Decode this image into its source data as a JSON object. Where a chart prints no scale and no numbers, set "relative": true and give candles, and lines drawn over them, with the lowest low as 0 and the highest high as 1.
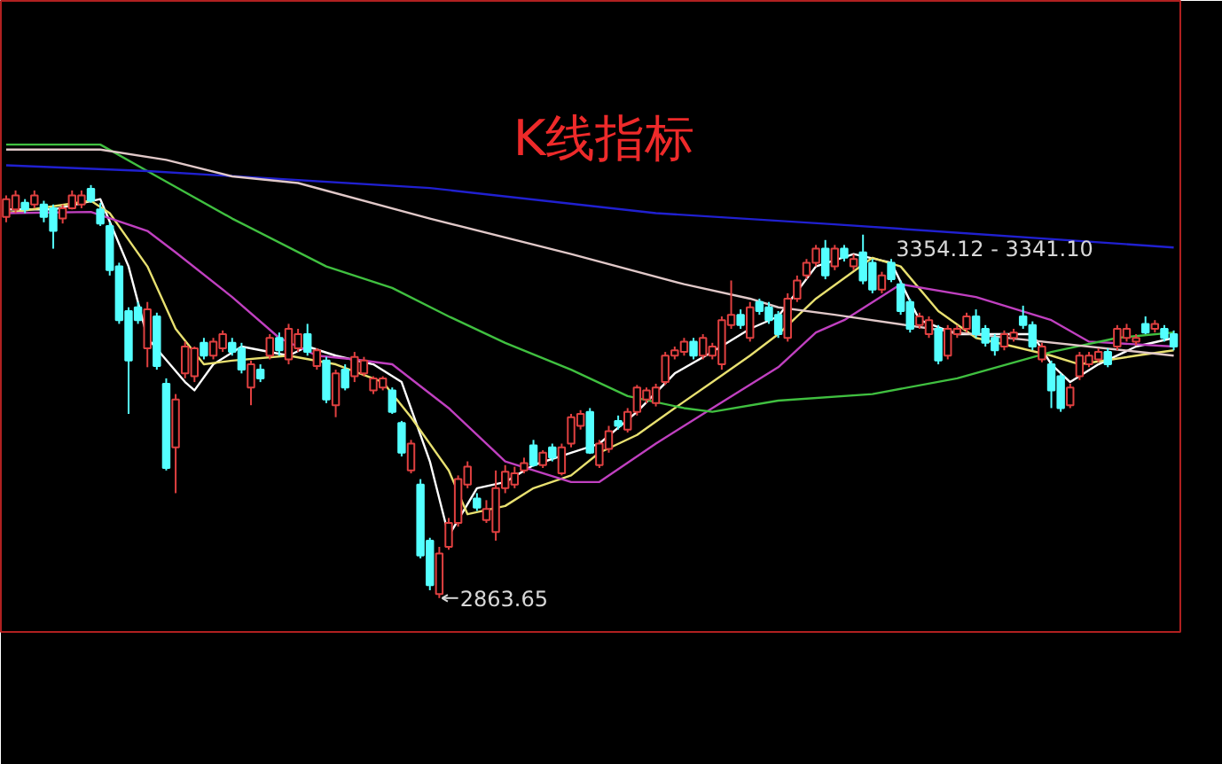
{
  "chart_data": {
    "type": "candlestick",
    "title": "K线指标",
    "relative": true,
    "categories": [
      null,
      null,
      null,
      null,
      null,
      null,
      null,
      null,
      null,
      null,
      null,
      null,
      null,
      null,
      null,
      null,
      null,
      null,
      null,
      null,
      null,
      null,
      null,
      null,
      null,
      null,
      null,
      null,
      null,
      null,
      null,
      null,
      null,
      null,
      null,
      null,
      null,
      null,
      null,
      null,
      null,
      null,
      null,
      null,
      null,
      null,
      null,
      null,
      null,
      null,
      null,
      null,
      null,
      null,
      null,
      null,
      null,
      null,
      null,
      null,
      null,
      null,
      null,
      null,
      null,
      null,
      null,
      null,
      null,
      null,
      null,
      null,
      null,
      null,
      null,
      null,
      null,
      null,
      null,
      null,
      null,
      null,
      null,
      null,
      null,
      null,
      null,
      null,
      null,
      null,
      null,
      null,
      null,
      null,
      null,
      null,
      null,
      null,
      null,
      null,
      null,
      null,
      null,
      null,
      null,
      null,
      null,
      null,
      null,
      null,
      null,
      null,
      null,
      null,
      null,
      null,
      null,
      null,
      null,
      null,
      null,
      null,
      null,
      null,
      null
    ],
    "ohlc": [
      [
        0.923,
        0.975,
        0.91,
        0.966
      ],
      [
        0.941,
        0.987,
        0.932,
        0.975
      ],
      [
        0.957,
        0.966,
        0.932,
        0.941
      ],
      [
        0.953,
        0.987,
        0.944,
        0.975
      ],
      [
        0.953,
        0.962,
        0.91,
        0.923
      ],
      [
        0.944,
        0.953,
        0.846,
        0.889
      ],
      [
        0.919,
        0.953,
        0.907,
        0.944
      ],
      [
        0.944,
        0.987,
        0.941,
        0.975
      ],
      [
        0.953,
        0.987,
        0.944,
        0.975
      ],
      [
        0.991,
        1,
        0.957,
        0.962
      ],
      [
        0.941,
        0.957,
        0.901,
        0.907
      ],
      [
        0.901,
        0.91,
        0.781,
        0.794
      ],
      [
        0.803,
        0.812,
        0.664,
        0.673
      ],
      [
        0.695,
        0.704,
        0.446,
        0.575
      ],
      [
        0.704,
        0.717,
        0.664,
        0.673
      ],
      [
        0.605,
        0.717,
        0.559,
        0.699
      ],
      [
        0.682,
        0.691,
        0.553,
        0.562
      ],
      [
        0.519,
        0.532,
        0.309,
        0.315
      ],
      [
        0.365,
        0.494,
        0.254,
        0.481
      ],
      [
        0.544,
        0.621,
        0.532,
        0.609
      ],
      [
        0.537,
        0.609,
        0.523,
        0.605
      ],
      [
        0.618,
        0.63,
        0.578,
        0.587
      ],
      [
        0.587,
        0.63,
        0.578,
        0.621
      ],
      [
        0.605,
        0.648,
        0.596,
        0.639
      ],
      [
        0.618,
        0.63,
        0.587,
        0.596
      ],
      [
        0.605,
        0.618,
        0.544,
        0.553
      ],
      [
        0.51,
        0.575,
        0.467,
        0.566
      ],
      [
        0.553,
        0.566,
        0.523,
        0.532
      ],
      [
        0.587,
        0.639,
        0.578,
        0.63
      ],
      [
        0.63,
        0.643,
        0.587,
        0.6
      ],
      [
        0.578,
        0.664,
        0.566,
        0.652
      ],
      [
        0.605,
        0.652,
        0.596,
        0.639
      ],
      [
        0.639,
        0.664,
        0.587,
        0.596
      ],
      [
        0.562,
        0.605,
        0.553,
        0.6
      ],
      [
        0.575,
        0.584,
        0.472,
        0.481
      ],
      [
        0.467,
        0.553,
        0.438,
        0.544
      ],
      [
        0.553,
        0.566,
        0.503,
        0.51
      ],
      [
        0.537,
        0.596,
        0.523,
        0.584
      ],
      [
        0.544,
        0.584,
        0.537,
        0.575
      ],
      [
        0.503,
        0.537,
        0.494,
        0.532
      ],
      [
        0.51,
        0.537,
        0.503,
        0.532
      ],
      [
        0.503,
        0.51,
        0.446,
        0.451
      ],
      [
        0.424,
        0.429,
        0.343,
        0.352
      ],
      [
        0.309,
        0.383,
        0.302,
        0.374
      ],
      [
        0.275,
        0.288,
        0.096,
        0.103
      ],
      [
        0.139,
        0.146,
        0.019,
        0.031
      ],
      [
        0.01,
        0.124,
        0,
        0.108
      ],
      [
        0.124,
        0.194,
        0.117,
        0.182
      ],
      [
        0.182,
        0.297,
        0.173,
        0.288
      ],
      [
        0.275,
        0.331,
        0.266,
        0.318
      ],
      [
        0.241,
        0.254,
        0.211,
        0.219
      ],
      [
        0.189,
        0.237,
        0.182,
        0.216
      ],
      [
        0.16,
        0.309,
        0.139,
        0.266
      ],
      [
        0.266,
        0.322,
        0.254,
        0.306
      ],
      [
        0.275,
        0.318,
        0.266,
        0.302
      ],
      [
        0.309,
        0.34,
        0.302,
        0.327
      ],
      [
        0.37,
        0.383,
        0.318,
        0.322
      ],
      [
        0.322,
        0.358,
        0.315,
        0.352
      ],
      [
        0.365,
        0.374,
        0.331,
        0.34
      ],
      [
        0.302,
        0.374,
        0.297,
        0.365
      ],
      [
        0.374,
        0.446,
        0.365,
        0.438
      ],
      [
        0.417,
        0.455,
        0.408,
        0.446
      ],
      [
        0.451,
        0.46,
        0.349,
        0.352
      ],
      [
        0.322,
        0.383,
        0.315,
        0.374
      ],
      [
        0.361,
        0.417,
        0.352,
        0.404
      ],
      [
        0.429,
        0.442,
        0.408,
        0.417
      ],
      [
        0.408,
        0.46,
        0.401,
        0.451
      ],
      [
        0.451,
        0.516,
        0.442,
        0.51
      ],
      [
        0.481,
        0.51,
        0.472,
        0.503
      ],
      [
        0.472,
        0.519,
        0.464,
        0.51
      ],
      [
        0.523,
        0.596,
        0.516,
        0.587
      ],
      [
        0.587,
        0.609,
        0.578,
        0.6
      ],
      [
        0.596,
        0.63,
        0.587,
        0.621
      ],
      [
        0.621,
        0.63,
        0.578,
        0.587
      ],
      [
        0.587,
        0.639,
        0.578,
        0.63
      ],
      [
        0.587,
        0.618,
        0.578,
        0.609
      ],
      [
        0.566,
        0.682,
        0.553,
        0.673
      ],
      [
        0.661,
        0.769,
        0.652,
        0.686
      ],
      [
        0.686,
        0.699,
        0.652,
        0.661
      ],
      [
        0.63,
        0.717,
        0.621,
        0.704
      ],
      [
        0.717,
        0.725,
        0.686,
        0.695
      ],
      [
        0.704,
        0.717,
        0.664,
        0.673
      ],
      [
        0.686,
        0.695,
        0.63,
        0.639
      ],
      [
        0.63,
        0.738,
        0.621,
        0.725
      ],
      [
        0.725,
        0.781,
        0.717,
        0.769
      ],
      [
        0.781,
        0.821,
        0.772,
        0.812
      ],
      [
        0.812,
        0.855,
        0.803,
        0.846
      ],
      [
        0.846,
        0.867,
        0.772,
        0.781
      ],
      [
        0.803,
        0.855,
        0.794,
        0.846
      ],
      [
        0.846,
        0.855,
        0.815,
        0.824
      ],
      [
        0.803,
        0.833,
        0.794,
        0.821
      ],
      [
        0.837,
        0.88,
        0.76,
        0.769
      ],
      [
        0.812,
        0.821,
        0.738,
        0.747
      ],
      [
        0.747,
        0.79,
        0.738,
        0.781
      ],
      [
        0.812,
        0.821,
        0.765,
        0.772
      ],
      [
        0.76,
        0.769,
        0.686,
        0.695
      ],
      [
        0.717,
        0.725,
        0.643,
        0.652
      ],
      [
        0.661,
        0.691,
        0.652,
        0.682
      ],
      [
        0.639,
        0.682,
        0.63,
        0.673
      ],
      [
        0.652,
        0.661,
        0.566,
        0.575
      ],
      [
        0.587,
        0.661,
        0.578,
        0.652
      ],
      [
        0.639,
        0.661,
        0.63,
        0.652
      ],
      [
        0.652,
        0.691,
        0.643,
        0.682
      ],
      [
        0.682,
        0.699,
        0.63,
        0.639
      ],
      [
        0.652,
        0.661,
        0.609,
        0.618
      ],
      [
        0.63,
        0.639,
        0.587,
        0.6
      ],
      [
        0.609,
        0.648,
        0.6,
        0.639
      ],
      [
        0.63,
        0.652,
        0.621,
        0.643
      ],
      [
        0.682,
        0.708,
        0.652,
        0.661
      ],
      [
        0.661,
        0.67,
        0.6,
        0.609
      ],
      [
        0.578,
        0.618,
        0.571,
        0.609
      ],
      [
        0.566,
        0.575,
        0.46,
        0.503
      ],
      [
        0.537,
        0.544,
        0.451,
        0.46
      ],
      [
        0.467,
        0.519,
        0.46,
        0.51
      ],
      [
        0.537,
        0.596,
        0.528,
        0.587
      ],
      [
        0.566,
        0.596,
        0.559,
        0.587
      ],
      [
        0.578,
        0.605,
        0.571,
        0.596
      ],
      [
        0.596,
        0.605,
        0.559,
        0.566
      ],
      [
        0.609,
        0.661,
        0.6,
        0.652
      ],
      [
        0.63,
        0.664,
        0.621,
        0.652
      ],
      [
        0.621,
        0.639,
        0.612,
        0.63
      ],
      [
        0.664,
        0.682,
        0.639,
        0.643
      ],
      [
        0.652,
        0.673,
        0.643,
        0.664
      ],
      [
        0.652,
        0.661,
        0.621,
        0.63
      ],
      [
        0.639,
        0.648,
        0.6,
        0.609
      ]
    ],
    "series": [
      {
        "type": "line",
        "color": "#ffffff",
        "values": [
          0.941,
          null,
          null,
          null,
          null,
          0.941,
          null,
          null,
          null,
          null,
          0.966,
          null,
          null,
          0.803,
          null,
          0.63,
          null,
          null,
          null,
          0.523,
          0.503,
          null,
          0.566,
          null,
          null,
          0.609,
          null,
          null,
          null,
          null,
          0.587,
          null,
          0.609,
          null,
          null,
          0.587,
          null,
          null,
          null,
          0.566,
          null,
          null,
          0.523,
          null,
          null,
          0.331,
          null,
          0.151,
          null,
          null,
          0.266,
          null,
          null,
          0.281,
          null,
          null,
          0.322,
          null,
          null,
          null,
          0.352,
          null,
          null,
          0.374,
          null,
          null,
          null,
          0.451,
          null,
          null,
          null,
          0.544,
          null,
          null,
          null,
          0.596,
          null,
          null,
          null,
          0.652,
          null,
          null,
          0.682,
          null,
          null,
          null,
          0.803,
          null,
          null,
          null,
          0.833,
          null,
          null,
          null,
          0.812,
          null,
          null,
          0.673,
          null,
          null,
          null,
          0.639,
          null,
          null,
          null,
          0.639,
          null,
          null,
          null,
          0.639,
          null,
          0.566,
          null,
          0.523,
          null,
          null,
          0.566,
          null,
          null,
          null,
          0.609,
          null,
          null,
          null,
          0.63
        ]
      },
      {
        "type": "line",
        "color": "#e8e070",
        "values": [
          0.932,
          null,
          null,
          null,
          null,
          null,
          null,
          null,
          null,
          0.962,
          null,
          0.932,
          null,
          null,
          null,
          0.803,
          null,
          null,
          0.652,
          null,
          null,
          0.566,
          null,
          null,
          0.575,
          null,
          null,
          null,
          null,
          null,
          0.587,
          null,
          null,
          null,
          null,
          0.566,
          null,
          null,
          null,
          null,
          0.523,
          null,
          null,
          0.438,
          null,
          null,
          null,
          0.309,
          null,
          0.203,
          null,
          null,
          null,
          0.223,
          null,
          null,
          0.266,
          null,
          null,
          null,
          0.297,
          null,
          null,
          0.352,
          null,
          null,
          null,
          0.395,
          null,
          null,
          null,
          0.46,
          null,
          null,
          null,
          0.523,
          null,
          null,
          null,
          0.587,
          null,
          null,
          0.639,
          null,
          null,
          null,
          0.725,
          null,
          null,
          null,
          null,
          null,
          0.824,
          null,
          null,
          0.803,
          null,
          null,
          null,
          0.695,
          null,
          null,
          null,
          0.63,
          null,
          null,
          null,
          0.609,
          null,
          null,
          null,
          0.587,
          null,
          null,
          0.566,
          null,
          null,
          null,
          null,
          null,
          0.587,
          null,
          null,
          null,
          0.6
        ]
      },
      {
        "type": "line",
        "color": "#c040c0",
        "values": [
          0.932,
          null,
          null,
          null,
          null,
          null,
          null,
          null,
          null,
          0.935,
          null,
          null,
          null,
          null,
          null,
          0.889,
          null,
          null,
          0.837,
          null,
          null,
          null,
          null,
          null,
          0.729,
          null,
          null,
          null,
          null,
          0.63,
          null,
          null,
          null,
          0.587,
          null,
          null,
          null,
          0.578,
          null,
          null,
          null,
          0.566,
          null,
          null,
          null,
          null,
          null,
          0.46,
          null,
          null,
          null,
          null,
          null,
          0.331,
          null,
          null,
          null,
          null,
          null,
          null,
          0.281,
          null,
          null,
          0.281,
          null,
          null,
          null,
          null,
          null,
          0.374,
          null,
          null,
          null,
          null,
          null,
          0.46,
          null,
          null,
          null,
          null,
          null,
          null,
          0.559,
          null,
          null,
          null,
          0.643,
          null,
          null,
          0.673,
          null,
          null,
          null,
          null,
          null,
          0.76,
          null,
          null,
          null,
          null,
          null,
          null,
          null,
          0.729,
          null,
          null,
          null,
          null,
          null,
          null,
          null,
          0.673,
          null,
          null,
          null,
          0.621,
          null,
          null,
          null,
          null,
          null,
          null,
          null,
          null,
          0.609
        ]
      },
      {
        "type": "line",
        "color": "#40c040",
        "values": [
          1.098,
          null,
          null,
          null,
          null,
          null,
          null,
          null,
          null,
          null,
          1.098,
          null,
          null,
          null,
          null,
          null,
          1.021,
          null,
          null,
          null,
          null,
          null,
          null,
          null,
          0.919,
          null,
          null,
          null,
          null,
          null,
          null,
          null,
          null,
          null,
          0.803,
          null,
          null,
          null,
          null,
          null,
          null,
          0.751,
          null,
          null,
          null,
          null,
          null,
          0.682,
          null,
          null,
          null,
          null,
          null,
          0.618,
          null,
          null,
          null,
          null,
          null,
          null,
          0.553,
          null,
          null,
          null,
          null,
          null,
          0.489,
          null,
          null,
          null,
          null,
          null,
          0.46,
          null,
          null,
          0.451,
          null,
          null,
          null,
          null,
          null,
          null,
          0.478,
          null,
          null,
          null,
          null,
          null,
          null,
          null,
          null,
          null,
          0.494,
          null,
          null,
          null,
          null,
          null,
          null,
          null,
          null,
          0.532,
          null,
          null,
          null,
          null,
          null,
          null,
          null,
          null,
          null,
          0.596,
          null,
          null,
          null,
          null,
          null,
          null,
          0.63,
          null,
          null,
          null,
          null,
          null,
          0.643
        ]
      },
      {
        "type": "line",
        "color": "#2020d0",
        "values": [
          1.048,
          null,
          null,
          null,
          null,
          null,
          null,
          null,
          null,
          null,
          null,
          null,
          null,
          null,
          null,
          1.034,
          null,
          null,
          null,
          null,
          null,
          null,
          null,
          null,
          null,
          null,
          null,
          null,
          null,
          null,
          null,
          null,
          null,
          null,
          null,
          null,
          null,
          null,
          null,
          null,
          null,
          null,
          null,
          null,
          null,
          0.993,
          null,
          null,
          null,
          null,
          null,
          null,
          null,
          null,
          null,
          null,
          null,
          null,
          null,
          null,
          null,
          null,
          null,
          null,
          null,
          null,
          null,
          null,
          null,
          0.932,
          null,
          null,
          null,
          null,
          null,
          null,
          null,
          null,
          null,
          null,
          null,
          null,
          null,
          null,
          null,
          null,
          null,
          null,
          0.905,
          null,
          null,
          null,
          null,
          null,
          null,
          null,
          null,
          null,
          null,
          null,
          null,
          null,
          null,
          null,
          null,
          null,
          null,
          null,
          null,
          null,
          null,
          null,
          null,
          null,
          null,
          null,
          null,
          null,
          null,
          null,
          null,
          null,
          null,
          null,
          0.849
        ]
      },
      {
        "type": "line",
        "color": "#e0c8c8",
        "values": [
          1.086,
          null,
          null,
          null,
          null,
          null,
          null,
          null,
          null,
          null,
          1.086,
          null,
          null,
          null,
          null,
          null,
          null,
          1.061,
          null,
          null,
          null,
          null,
          null,
          null,
          1.021,
          null,
          null,
          null,
          null,
          null,
          null,
          1.005,
          null,
          null,
          null,
          null,
          null,
          null,
          null,
          null,
          null,
          null,
          null,
          null,
          null,
          0.919,
          null,
          null,
          null,
          null,
          null,
          null,
          null,
          null,
          null,
          null,
          null,
          null,
          null,
          null,
          0.833,
          null,
          null,
          null,
          null,
          null,
          null,
          null,
          null,
          null,
          null,
          null,
          0.76,
          null,
          null,
          null,
          null,
          null,
          null,
          0.725,
          null,
          null,
          0.704,
          null,
          null,
          null,
          null,
          null,
          0.686,
          null,
          null,
          null,
          null,
          null,
          null,
          null,
          null,
          null,
          null,
          null,
          null,
          0.643,
          null,
          null,
          null,
          null,
          null,
          null,
          null,
          null,
          null,
          null,
          null,
          null,
          null,
          null,
          null,
          null,
          null,
          null,
          null,
          null,
          null,
          null,
          0.587
        ]
      }
    ],
    "annotations": [
      "3354.12 - 3341.10",
      "2863.65"
    ]
  }
}
